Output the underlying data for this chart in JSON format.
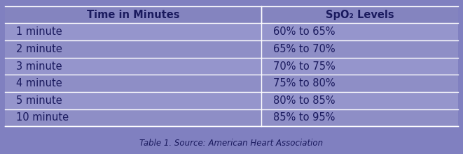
{
  "background_color": "#8080c0",
  "header_bg_color": "#8080c0",
  "row_even_color": "#9090cc",
  "row_odd_color": "#8888c4",
  "separator_color": "#ffffff",
  "text_color": "#1a1a5e",
  "header_text_color": "#1a1a5e",
  "caption_color": "#1a1a5e",
  "col1_header": "Time in Minutes",
  "col2_header": "SpO₂ Levels",
  "caption": "Table 1. Source: American Heart Association",
  "rows": [
    [
      "1 minute",
      "60% to 65%"
    ],
    [
      "2 minute",
      "65% to 70%"
    ],
    [
      "3 minute",
      "70% to 75%"
    ],
    [
      "4 minute",
      "75% to 80%"
    ],
    [
      "5 minute",
      "80% to 85%"
    ],
    [
      "10 minute",
      "85% to 95%"
    ]
  ],
  "col_split": 0.565,
  "header_fontsize": 10.5,
  "row_fontsize": 10.5,
  "caption_fontsize": 8.5,
  "fig_width": 6.61,
  "fig_height": 2.21
}
